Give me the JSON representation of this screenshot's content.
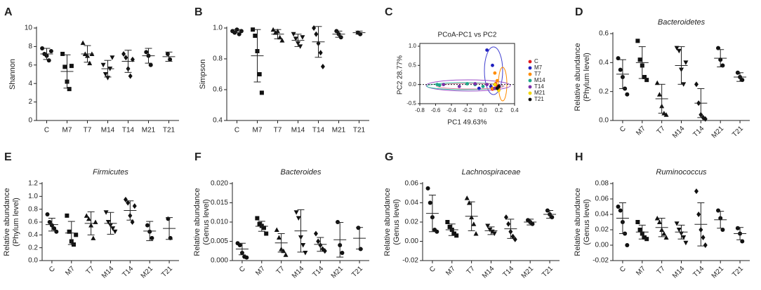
{
  "chart_data": [
    {
      "type": "dotplot",
      "panel": "A",
      "ylabel": "Shannon",
      "categories": [
        "C",
        "M7",
        "T7",
        "M14",
        "T14",
        "M21",
        "T21"
      ],
      "ylim": [
        0,
        10
      ],
      "yticks": [
        0,
        2,
        4,
        6,
        8,
        10
      ],
      "groups": [
        {
          "points": [
            7.8,
            7.2,
            7.0,
            6.5,
            7.5
          ],
          "mean": 7.2,
          "sd": 0.6
        },
        {
          "points": [
            7.2,
            5.8,
            4.2,
            3.4,
            5.9
          ],
          "mean": 5.3,
          "sd": 1.8
        },
        {
          "points": [
            8.4,
            7.2,
            7.0,
            6.2,
            7.2
          ],
          "mean": 7.2,
          "sd": 0.9
        },
        {
          "points": [
            6.0,
            5.0,
            4.6,
            5.6,
            6.8
          ],
          "mean": 5.6,
          "sd": 0.9
        },
        {
          "points": [
            7.2,
            6.8,
            5.6,
            4.8,
            6.6
          ],
          "mean": 6.4,
          "sd": 1.2
        },
        {
          "points": [
            7.4,
            7.0,
            6.0
          ],
          "mean": 7.0,
          "sd": 0.8
        },
        {
          "points": [
            7.2,
            6.6
          ],
          "mean": 6.9,
          "sd": 0.5
        }
      ]
    },
    {
      "type": "dotplot",
      "panel": "B",
      "ylabel": "Simpson",
      "categories": [
        "C",
        "M7",
        "T7",
        "M14",
        "T14",
        "M21",
        "T21"
      ],
      "ylim": [
        0.4,
        1.0
      ],
      "yticks": [
        0.4,
        0.6,
        0.8,
        {
          "value": 1.0,
          "label": "1.0"
        }
      ],
      "groups": [
        {
          "points": [
            0.98,
            0.97,
            0.99,
            0.96,
            0.98
          ],
          "mean": 0.98,
          "sd": 0.01
        },
        {
          "points": [
            0.99,
            0.95,
            0.85,
            0.7,
            0.58
          ],
          "mean": 0.82,
          "sd": 0.17
        },
        {
          "points": [
            0.99,
            0.97,
            0.98,
            0.94,
            0.92
          ],
          "mean": 0.96,
          "sd": 0.03
        },
        {
          "points": [
            0.96,
            0.93,
            0.9,
            0.88,
            0.94
          ],
          "mean": 0.92,
          "sd": 0.04
        },
        {
          "points": [
            1.0,
            0.96,
            0.9,
            0.84,
            0.75
          ],
          "mean": 0.91,
          "sd": 0.1
        },
        {
          "points": [
            0.98,
            0.96,
            0.94
          ],
          "mean": 0.96,
          "sd": 0.02
        },
        {
          "points": [
            0.97,
            0.96
          ],
          "mean": 0.97,
          "sd": 0.01
        }
      ]
    },
    {
      "type": "scatter",
      "panel": "C",
      "title": "PCoA-PC1 vs  PC2",
      "xlabel": "PC1 49.63%",
      "ylabel": "PC2 28.77%",
      "xlim": [
        -0.8,
        0.4
      ],
      "xticks": [
        -0.8,
        -0.6,
        -0.4,
        -0.2,
        {
          "value": 0.0,
          "label": "0.0"
        },
        0.2,
        0.4
      ],
      "ylim": [
        -0.5,
        1.0
      ],
      "yticks": [
        -0.5,
        {
          "value": 0.0,
          "label": "0.0"
        },
        0.5,
        {
          "value": 1.0,
          "label": "1.0"
        }
      ],
      "series": [
        {
          "name": "C",
          "color": "#e41a1c",
          "x": [
            0.15,
            0.18,
            0.12,
            0.2,
            0.16
          ],
          "values": [
            -0.1,
            -0.05,
            -0.12,
            -0.08,
            0.02
          ]
        },
        {
          "name": "M7",
          "color": "#1f1fbf",
          "x": [
            0.05,
            0.12,
            0.1,
            -0.05,
            0.15
          ],
          "values": [
            0.9,
            0.5,
            -0.05,
            -0.1,
            0.0
          ]
        },
        {
          "name": "T7",
          "color": "#ff8c00",
          "x": [
            0.15,
            0.18,
            0.2,
            0.12,
            0.16
          ],
          "values": [
            0.3,
            0.1,
            -0.15,
            -0.1,
            0.0
          ]
        },
        {
          "name": "M14",
          "color": "#1fa88a",
          "x": [
            -0.58,
            -0.55,
            -0.2,
            0.0,
            -0.1
          ],
          "values": [
            0.0,
            -0.02,
            0.02,
            -0.05,
            0.0
          ]
        },
        {
          "name": "T14",
          "color": "#7b2fa8",
          "x": [
            -0.3,
            -0.5,
            0.05,
            0.15,
            -0.1
          ],
          "values": [
            -0.05,
            0.0,
            0.0,
            -0.1,
            0.02
          ]
        },
        {
          "name": "M21",
          "color": "#f2d600",
          "x": [
            0.2,
            0.18,
            0.15
          ],
          "values": [
            -0.15,
            -0.1,
            0.0
          ]
        },
        {
          "name": "T21",
          "color": "#111111",
          "x": [
            0.18,
            0.2
          ],
          "values": [
            -0.1,
            -0.05
          ]
        }
      ]
    },
    {
      "type": "dotplot",
      "panel": "D",
      "title": "Bacteroidetes",
      "ylabel": [
        "Relative  abundance",
        "(Phylum level)"
      ],
      "categories": [
        "C",
        "M7",
        "T7",
        "M14",
        "T14",
        "M21",
        "T21"
      ],
      "ylim": [
        0,
        0.6
      ],
      "yticks": [
        {
          "value": 0,
          "label": "0.0"
        },
        0.2,
        0.4,
        0.6
      ],
      "groups": [
        {
          "points": [
            0.43,
            0.35,
            0.3,
            0.22,
            0.18
          ],
          "mean": 0.32,
          "sd": 0.1
        },
        {
          "points": [
            0.55,
            0.42,
            0.38,
            0.3,
            0.28
          ],
          "mean": 0.4,
          "sd": 0.11
        },
        {
          "points": [
            0.26,
            0.18,
            0.1,
            0.05,
            0.04
          ],
          "mean": 0.15,
          "sd": 0.1
        },
        {
          "points": [
            0.5,
            0.48,
            0.35,
            0.25,
            0.4
          ],
          "mean": 0.38,
          "sd": 0.13
        },
        {
          "points": [
            0.25,
            0.12,
            0.04,
            0.02,
            0.01
          ],
          "mean": 0.12,
          "sd": 0.1
        },
        {
          "points": [
            0.5,
            0.42,
            0.38
          ],
          "mean": 0.43,
          "sd": 0.06
        },
        {
          "points": [
            0.33,
            0.3,
            0.28
          ],
          "mean": 0.3,
          "sd": 0.03
        }
      ]
    },
    {
      "type": "dotplot",
      "panel": "E",
      "title": "Firmicutes",
      "ylabel": [
        "Relative  abundance",
        "(Phylum level)"
      ],
      "categories": [
        "C",
        "M7",
        "T7",
        "M14",
        "T14",
        "M21",
        "T21"
      ],
      "ylim": [
        0,
        1.2
      ],
      "yticks": [
        {
          "value": 0,
          "label": "0.0"
        },
        0.2,
        0.4,
        0.6,
        0.8,
        {
          "value": 1.0,
          "label": "1.0"
        },
        1.2
      ],
      "groups": [
        {
          "points": [
            0.72,
            0.6,
            0.55,
            0.5,
            0.45
          ],
          "mean": 0.56,
          "sd": 0.1
        },
        {
          "points": [
            0.7,
            0.45,
            0.3,
            0.25,
            0.4
          ],
          "mean": 0.43,
          "sd": 0.18
        },
        {
          "points": [
            0.7,
            0.65,
            0.55,
            0.35,
            0.6
          ],
          "mean": 0.58,
          "sd": 0.18
        },
        {
          "points": [
            0.75,
            0.6,
            0.55,
            0.5,
            0.45
          ],
          "mean": 0.58,
          "sd": 0.17
        },
        {
          "points": [
            0.95,
            0.9,
            0.7,
            0.6,
            0.85
          ],
          "mean": 0.78,
          "sd": 0.15
        },
        {
          "points": [
            0.55,
            0.45,
            0.35
          ],
          "mean": 0.46,
          "sd": 0.15
        },
        {
          "points": [
            0.65,
            0.35
          ],
          "mean": 0.5,
          "sd": 0.17
        }
      ]
    },
    {
      "type": "dotplot",
      "panel": "F",
      "title": "Bacteroides",
      "ylabel": [
        "Relative  abundance",
        "(Genus level)"
      ],
      "categories": [
        "C",
        "M7",
        "T7",
        "M14",
        "T14",
        "M21",
        "T21"
      ],
      "ylim": [
        0,
        0.02
      ],
      "yticks": [
        {
          "value": 0,
          "label": "0.000"
        },
        {
          "value": 0.005,
          "label": "0.005"
        },
        {
          "value": 0.01,
          "label": "0.010"
        },
        {
          "value": 0.015,
          "label": "0.015"
        },
        {
          "value": 0.02,
          "label": "0.020"
        }
      ],
      "groups": [
        {
          "points": [
            0.0045,
            0.004,
            0.002,
            0.001,
            0.0008
          ],
          "mean": 0.003,
          "sd": 0.0015
        },
        {
          "points": [
            0.011,
            0.0095,
            0.009,
            0.0085,
            0.007
          ],
          "mean": 0.0089,
          "sd": 0.0013
        },
        {
          "points": [
            0.008,
            0.006,
            0.003,
            0.0025,
            0.0015
          ],
          "mean": 0.0046,
          "sd": 0.0024
        },
        {
          "points": [
            0.0125,
            0.011,
            0.006,
            0.004,
            0.002
          ],
          "mean": 0.0077,
          "sd": 0.0055
        },
        {
          "points": [
            0.007,
            0.005,
            0.004,
            0.003,
            0.0025
          ],
          "mean": 0.0042,
          "sd": 0.0018
        },
        {
          "points": [
            0.01,
            0.004,
            0.002
          ],
          "mean": 0.0054,
          "sd": 0.0045
        },
        {
          "points": [
            0.0085,
            0.003
          ],
          "mean": 0.0058,
          "sd": 0.0028
        }
      ]
    },
    {
      "type": "dotplot",
      "panel": "G",
      "title": "Lachnospiraceae",
      "ylabel": [
        "Relative  abundance",
        "(Genus level)"
      ],
      "categories": [
        "C",
        "M7",
        "T7",
        "M14",
        "T14",
        "M21",
        "T21"
      ],
      "ylim": [
        -0.02,
        0.06
      ],
      "yticks": [
        {
          "value": -0.02,
          "label": "-0.02"
        },
        {
          "value": 0,
          "label": "0.00"
        },
        {
          "value": 0.02,
          "label": "0.02"
        },
        {
          "value": 0.04,
          "label": "0.04"
        },
        {
          "value": 0.06,
          "label": "0.06"
        }
      ],
      "groups": [
        {
          "points": [
            0.055,
            0.04,
            0.025,
            0.012,
            0.01
          ],
          "mean": 0.029,
          "sd": 0.019
        },
        {
          "points": [
            0.02,
            0.015,
            0.012,
            0.008,
            0.006
          ],
          "mean": 0.012,
          "sd": 0.006
        },
        {
          "points": [
            0.045,
            0.04,
            0.025,
            0.018,
            0.008
          ],
          "mean": 0.026,
          "sd": 0.015
        },
        {
          "points": [
            0.016,
            0.012,
            0.01,
            0.008
          ],
          "mean": 0.011,
          "sd": 0.004
        },
        {
          "points": [
            0.025,
            0.018,
            0.01,
            0.005,
            0.002
          ],
          "mean": 0.013,
          "sd": 0.01
        },
        {
          "points": [
            0.022,
            0.02,
            0.018
          ],
          "mean": 0.02,
          "sd": 0.003
        },
        {
          "points": [
            0.032,
            0.028,
            0.025
          ],
          "mean": 0.028,
          "sd": 0.004
        }
      ]
    },
    {
      "type": "dotplot",
      "panel": "H",
      "title": "Ruminococcus",
      "ylabel": [
        "Relative  abundance",
        "(Genus level)"
      ],
      "categories": [
        "C",
        "M7",
        "T7",
        "M14",
        "T14",
        "M21",
        "T21"
      ],
      "ylim": [
        -0.02,
        0.08
      ],
      "yticks": [
        {
          "value": -0.02,
          "label": "-0.02"
        },
        {
          "value": 0,
          "label": "0.00"
        },
        {
          "value": 0.02,
          "label": "0.02"
        },
        {
          "value": 0.04,
          "label": "0.04"
        },
        {
          "value": 0.06,
          "label": "0.06"
        },
        {
          "value": 0.08,
          "label": "0.08"
        }
      ],
      "groups": [
        {
          "points": [
            0.05,
            0.045,
            0.03,
            0.015,
            0.0
          ],
          "mean": 0.035,
          "sd": 0.02
        },
        {
          "points": [
            0.03,
            0.02,
            0.015,
            0.01,
            0.008
          ],
          "mean": 0.017,
          "sd": 0.009
        },
        {
          "points": [
            0.035,
            0.03,
            0.02,
            0.015,
            0.01
          ],
          "mean": 0.023,
          "sd": 0.012
        },
        {
          "points": [
            0.028,
            0.02,
            0.015,
            0.01,
            0.003
          ],
          "mean": 0.017,
          "sd": 0.009
        },
        {
          "points": [
            0.07,
            0.04,
            0.02,
            0.01,
            0.0
          ],
          "mean": 0.027,
          "sd": 0.028
        },
        {
          "points": [
            0.045,
            0.035,
            0.02
          ],
          "mean": 0.033,
          "sd": 0.011
        },
        {
          "points": [
            0.022,
            0.015,
            0.005
          ],
          "mean": 0.015,
          "sd": 0.008
        }
      ]
    }
  ]
}
